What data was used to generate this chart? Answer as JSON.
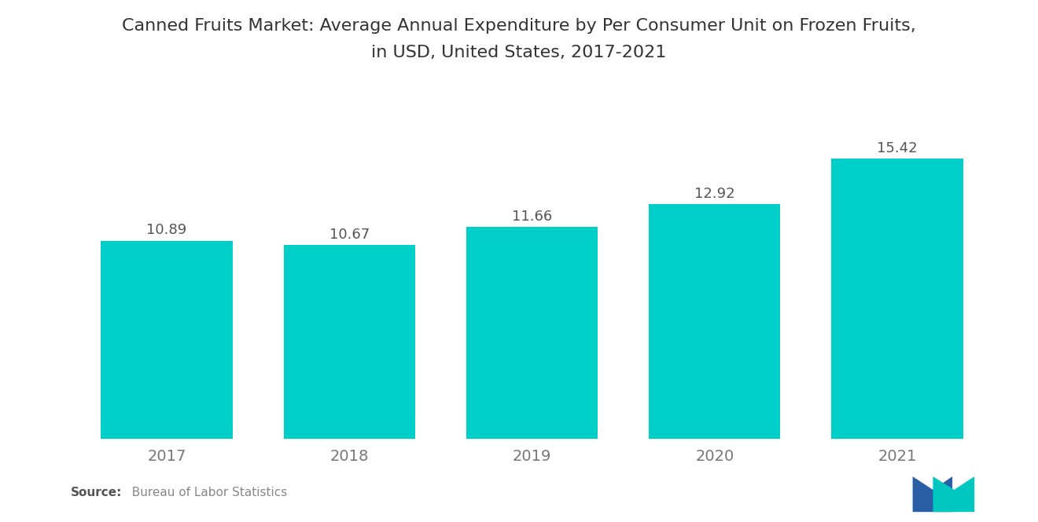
{
  "title_line1": "Canned Fruits Market: Average Annual Expenditure by Per Consumer Unit on Frozen Fruits,",
  "title_line2": "in USD, United States, 2017-2021",
  "categories": [
    "2017",
    "2018",
    "2019",
    "2020",
    "2021"
  ],
  "values": [
    10.89,
    10.67,
    11.66,
    12.92,
    15.42
  ],
  "bar_color": "#00CEC8",
  "background_color": "#ffffff",
  "title_fontsize": 16,
  "label_fontsize": 13,
  "tick_fontsize": 14,
  "source_bold": "Source:",
  "source_normal": "  Bureau of Labor Statistics",
  "source_fontsize": 11,
  "ylim": [
    0,
    19
  ],
  "bar_width": 0.72,
  "logo_blue": "#2B5FA5",
  "logo_teal": "#00C8C0",
  "value_color": "#555555",
  "tick_color": "#777777"
}
